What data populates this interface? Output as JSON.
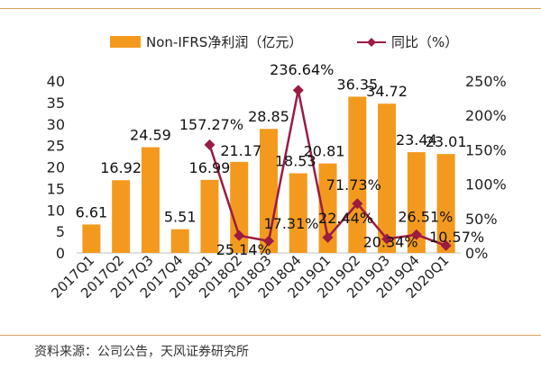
{
  "chart_data": {
    "type": "bar",
    "categories": [
      "2017Q1",
      "2017Q2",
      "2017Q3",
      "2017Q4",
      "2018Q1",
      "2018Q2",
      "2018Q3",
      "2018Q4",
      "2019Q1",
      "2019Q2",
      "2019Q3",
      "2019Q4",
      "2020Q1"
    ],
    "series": [
      {
        "name": "Non-IFRS净利润（亿元）",
        "type": "bar",
        "axis": "left",
        "color": "#f39a1e",
        "values": [
          6.61,
          16.92,
          24.59,
          5.51,
          16.99,
          21.17,
          28.85,
          18.53,
          20.81,
          36.35,
          34.72,
          23.44,
          23.01
        ],
        "labels": [
          "6.61",
          "16.92",
          "24.59",
          "5.51",
          "16.99",
          "21.17",
          "28.85",
          "18.53",
          "20.81",
          "36.35",
          "34.72",
          "23.44",
          "23.01"
        ]
      },
      {
        "name": "同比（%）",
        "type": "line",
        "axis": "right",
        "color": "#9b1b43",
        "values": [
          null,
          null,
          null,
          null,
          157.27,
          25.14,
          17.31,
          236.64,
          22.44,
          71.73,
          20.34,
          26.51,
          10.57
        ],
        "labels": [
          null,
          null,
          null,
          null,
          "157.27%",
          "25.14%",
          "17.31%",
          "236.64%",
          "22.44%",
          "71.73%",
          "20.34%",
          "26.51%",
          "10.57%"
        ]
      }
    ],
    "y_left": {
      "min": 0,
      "max": 40,
      "ticks": [
        "0",
        "5",
        "10",
        "15",
        "20",
        "25",
        "30",
        "35",
        "40"
      ]
    },
    "y_right": {
      "min": 0,
      "max": 250,
      "ticks": [
        "0%",
        "50%",
        "100%",
        "150%",
        "200%",
        "250%"
      ]
    },
    "legend": {
      "position": "top",
      "bar_label": "Non-IFRS净利润（亿元）",
      "line_label": "同比（%）"
    }
  },
  "source": "资料来源：公司公告，天风证券研究所",
  "colors": {
    "bar": "#f39a1e",
    "line": "#9b1b43",
    "rule": "#d9a066",
    "text": "#333333"
  }
}
